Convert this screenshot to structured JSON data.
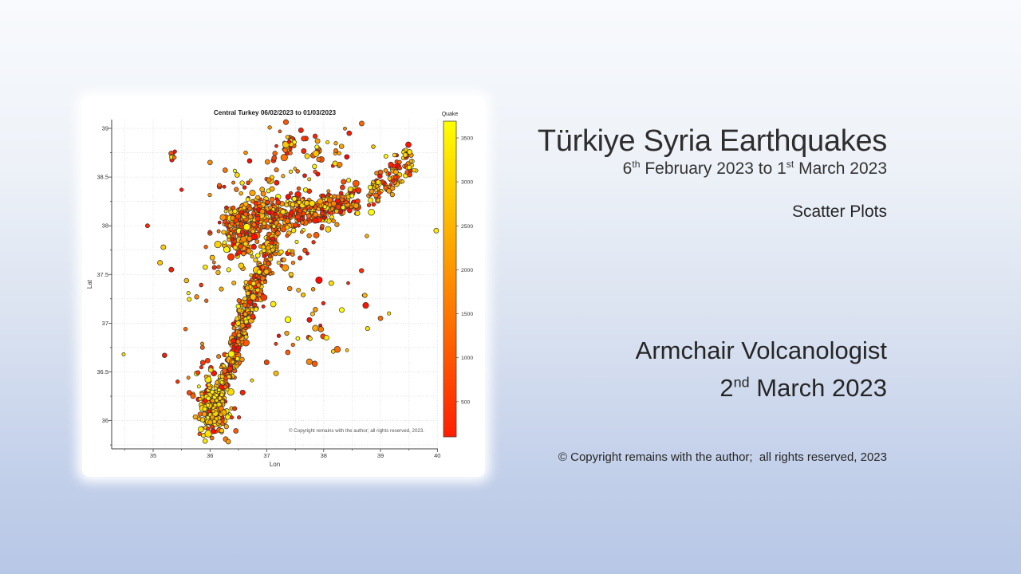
{
  "colors": {
    "bg_top": "#f8fafd",
    "bg_bottom": "#b7c7e6",
    "text": "#262626",
    "panel": "#ffffff"
  },
  "header": {
    "title": "Türkiye Syria Earthquakes",
    "subtitle": {
      "d1": "6",
      "s1": "th",
      "mid": " February 2023 to 1",
      "s2": "st",
      "end": " March 2023"
    },
    "topic": "Scatter Plots"
  },
  "author": {
    "name": "Armchair Volcanologist",
    "date": {
      "d": "2",
      "s": "nd",
      "rest": " March 2023"
    }
  },
  "footer": {
    "copyright": "© Copyright remains with the author;  all rights reserved, 2023"
  },
  "chart_data": {
    "type": "scatter",
    "title": "Central Turkey 06/02/2023 to 01/03/2023",
    "xlabel": "Lon",
    "ylabel": "Lat",
    "xlim": [
      34.27,
      40.01
    ],
    "ylim": [
      35.71,
      39.09
    ],
    "xticks": [
      35,
      36,
      37,
      38,
      39,
      40
    ],
    "yticks": [
      36,
      36.5,
      37,
      37.5,
      38,
      38.5,
      39
    ],
    "grid": {
      "x_step": 0.5,
      "y_step": 0.25
    },
    "annotation": "© Copyright remains with the author; all rights reserved, 2023.",
    "colorbar": {
      "label": "Quake",
      "min": 100,
      "max": 3690,
      "ticks": [
        500,
        1000,
        1500,
        2000,
        2500,
        3000,
        3500
      ],
      "color_low": "#ff1e00",
      "color_high": "#ffff00"
    },
    "marker": {
      "edge": "#333333"
    },
    "seed": 1337,
    "clusters": [
      {
        "name": "hatay-dense",
        "kind": "blob",
        "cx": 36.05,
        "cy": 36.17,
        "sx": 0.12,
        "sy": 0.16,
        "n": 170,
        "q": [
          2300,
          3690
        ]
      },
      {
        "name": "hatay-mixed",
        "kind": "blob",
        "cx": 36.07,
        "cy": 36.2,
        "sx": 0.16,
        "sy": 0.22,
        "n": 80,
        "q": [
          150,
          2600
        ]
      },
      {
        "name": "amanos-band-south",
        "kind": "band",
        "x1": 36.28,
        "y1": 36.42,
        "x2": 36.62,
        "y2": 37.08,
        "spread": 0.07,
        "n": 150,
        "q": [
          150,
          3690
        ]
      },
      {
        "name": "amanos-band-north",
        "kind": "band",
        "x1": 36.55,
        "y1": 37.05,
        "x2": 36.95,
        "y2": 37.55,
        "spread": 0.08,
        "n": 150,
        "q": [
          150,
          3690
        ]
      },
      {
        "name": "band-junction",
        "kind": "band",
        "x1": 36.9,
        "y1": 37.55,
        "x2": 37.15,
        "y2": 37.9,
        "spread": 0.07,
        "n": 80,
        "q": [
          150,
          3690
        ]
      },
      {
        "name": "kahramanmaras-blob",
        "kind": "blob",
        "cx": 36.55,
        "cy": 37.88,
        "sx": 0.16,
        "sy": 0.12,
        "n": 150,
        "q": [
          150,
          3690
        ]
      },
      {
        "name": "eaf-main-band",
        "kind": "band",
        "x1": 36.35,
        "y1": 38.05,
        "x2": 38.0,
        "y2": 38.15,
        "spread": 0.1,
        "n": 380,
        "q": [
          150,
          3690
        ]
      },
      {
        "name": "eaf-band-east",
        "kind": "band",
        "x1": 38.0,
        "y1": 38.15,
        "x2": 38.6,
        "y2": 38.3,
        "spread": 0.08,
        "n": 110,
        "q": [
          150,
          3690
        ]
      },
      {
        "name": "northeast-cluster",
        "kind": "band",
        "x1": 38.85,
        "y1": 38.3,
        "x2": 39.55,
        "y2": 38.72,
        "spread": 0.09,
        "n": 110,
        "q": [
          150,
          3690
        ]
      },
      {
        "name": "north-cluster",
        "kind": "blob",
        "cx": 37.35,
        "cy": 38.85,
        "sx": 0.05,
        "sy": 0.04,
        "n": 22,
        "q": [
          150,
          3690
        ]
      },
      {
        "name": "northwest-tight",
        "kind": "blob",
        "cx": 35.33,
        "cy": 38.71,
        "sx": 0.022,
        "sy": 0.022,
        "n": 9,
        "q": [
          150,
          3690
        ]
      },
      {
        "name": "north-scatter",
        "kind": "blob",
        "cx": 37.8,
        "cy": 38.72,
        "sx": 0.55,
        "sy": 0.2,
        "n": 45,
        "q": [
          150,
          3690
        ]
      },
      {
        "name": "above-band-scatter",
        "kind": "blob",
        "cx": 36.9,
        "cy": 38.45,
        "sx": 0.45,
        "sy": 0.15,
        "n": 40,
        "q": [
          150,
          3690
        ]
      },
      {
        "name": "southeast-scatter",
        "kind": "blob",
        "cx": 37.7,
        "cy": 37.05,
        "sx": 0.6,
        "sy": 0.35,
        "n": 42,
        "q": [
          150,
          3690
        ]
      },
      {
        "name": "below-band-scatter",
        "kind": "blob",
        "cx": 37.3,
        "cy": 37.75,
        "sx": 0.35,
        "sy": 0.15,
        "n": 30,
        "q": [
          150,
          3690
        ]
      },
      {
        "name": "west-sparse",
        "kind": "blob",
        "cx": 35.95,
        "cy": 37.6,
        "sx": 0.25,
        "sy": 0.25,
        "n": 15,
        "q": [
          150,
          3690
        ]
      }
    ],
    "outliers": [
      [
        34.48,
        36.68,
        3300
      ],
      [
        35.2,
        36.67,
        420
      ],
      [
        35.57,
        36.94,
        1500
      ],
      [
        35.43,
        36.4,
        700
      ],
      [
        35.62,
        36.44,
        1900
      ],
      [
        35.32,
        37.55,
        500
      ],
      [
        35.18,
        37.78,
        3000
      ],
      [
        35.12,
        37.62,
        2900
      ],
      [
        35.5,
        38.37,
        420
      ],
      [
        39.98,
        37.95,
        3350
      ],
      [
        39.0,
        37.05,
        1600
      ],
      [
        39.15,
        37.1,
        3200
      ],
      [
        38.05,
        36.85,
        3400
      ],
      [
        34.9,
        38.0,
        700
      ],
      [
        36.0,
        38.65,
        2000
      ],
      [
        37.6,
        38.98,
        500
      ],
      [
        38.67,
        39.05,
        1500
      ],
      [
        37.85,
        38.92,
        600
      ],
      [
        38.45,
        38.95,
        450
      ],
      [
        36.2,
        37.35,
        2500
      ]
    ]
  }
}
